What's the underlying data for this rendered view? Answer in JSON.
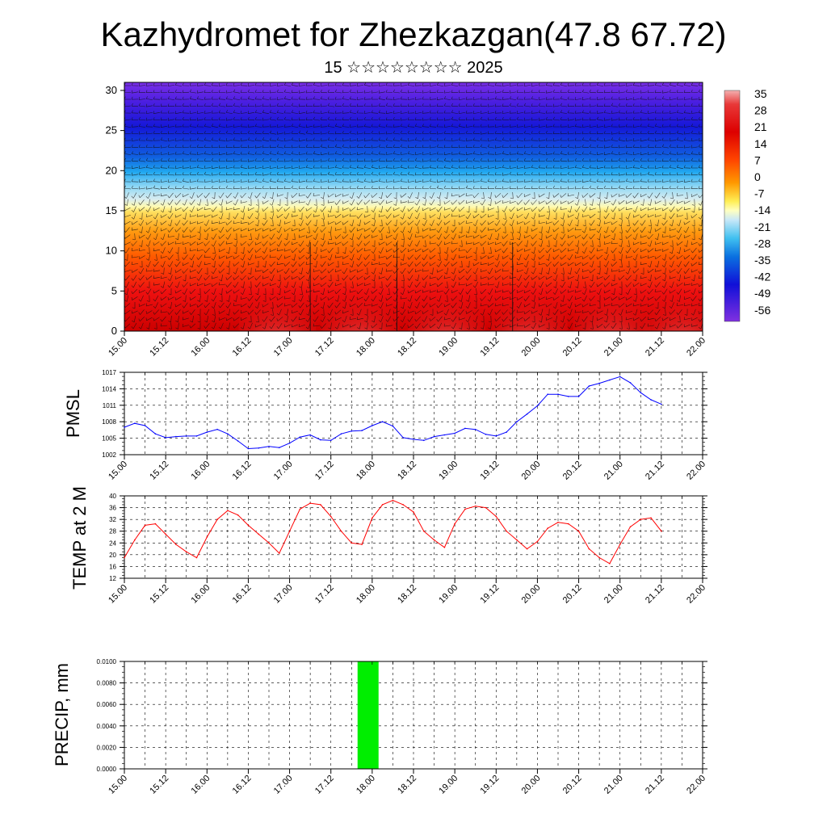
{
  "title": "Kazhydromet for Zhezkazgan(47.8 67.72)",
  "subtitle": "15 ☆☆☆☆☆☆☆☆ 2025",
  "time_labels": [
    "15.00",
    "15.12",
    "16.00",
    "16.12",
    "17.00",
    "17.12",
    "18.00",
    "18.12",
    "19.00",
    "19.12",
    "20.00",
    "20.12",
    "21.00",
    "21.12",
    "22.00"
  ],
  "colors": {
    "pmsl_line": "#0000ff",
    "temp_line": "#ff0000",
    "precip_bar": "#00ee00"
  },
  "chart_data": [
    {
      "type": "heatmap",
      "name": "vertical-temperature-wind-section",
      "yticks": [
        0,
        5,
        10,
        15,
        20,
        25,
        30
      ],
      "ylim": [
        0,
        31
      ],
      "colorbar": {
        "labels": [
          "35",
          "28",
          "21",
          "14",
          "7",
          "0",
          "-7",
          "-14",
          "-21",
          "-28",
          "-35",
          "-42",
          "-49",
          "-56"
        ],
        "range": [
          -60,
          38
        ]
      },
      "overlay": "wind barbs"
    },
    {
      "type": "line",
      "ylabel": "PMSL",
      "yticks": [
        "1002",
        "1005",
        "1008",
        "1011",
        "1014",
        "1017"
      ],
      "ylim": [
        1002,
        1017
      ],
      "x": [
        0,
        0.125,
        0.25,
        0.375,
        0.5,
        0.625,
        0.75,
        0.875,
        1,
        1.125,
        1.25,
        1.375,
        1.5,
        1.625,
        1.75,
        1.875,
        2,
        2.125,
        2.25,
        2.375,
        2.5,
        2.625,
        2.75,
        2.875,
        3,
        3.125,
        3.25,
        3.375,
        3.5,
        3.625,
        3.75,
        3.875,
        4,
        4.125,
        4.25,
        4.375,
        4.5,
        4.625,
        4.75,
        4.875,
        5,
        5.125,
        5.25,
        5.375,
        5.5,
        5.625,
        5.75,
        5.875,
        6,
        6.125,
        6.25,
        6.375,
        6.5
      ],
      "values": [
        1007.0,
        1007.7,
        1007.3,
        1005.8,
        1005.1,
        1005.3,
        1005.4,
        1005.4,
        1006.1,
        1006.6,
        1005.8,
        1004.5,
        1003.1,
        1003.2,
        1003.5,
        1003.3,
        1004.1,
        1005.2,
        1005.6,
        1004.7,
        1004.6,
        1005.8,
        1006.3,
        1006.4,
        1007.3,
        1008.0,
        1007.2,
        1005.1,
        1004.8,
        1004.6,
        1005.3,
        1005.6,
        1005.9,
        1006.8,
        1006.6,
        1005.7,
        1005.4,
        1006.1,
        1008.0,
        1009.4,
        1010.9,
        1013.0,
        1013.0,
        1012.6,
        1012.6,
        1014.5,
        1015.0,
        1015.6,
        1016.2,
        1015.1,
        1013.3,
        1012.0,
        1011.2
      ]
    },
    {
      "type": "line",
      "ylabel": "TEMP at 2 M",
      "yticks": [
        "12",
        "16",
        "20",
        "24",
        "28",
        "32",
        "36",
        "40"
      ],
      "ylim": [
        12,
        40
      ],
      "x": [
        0,
        0.125,
        0.25,
        0.375,
        0.5,
        0.625,
        0.75,
        0.875,
        1,
        1.125,
        1.25,
        1.375,
        1.5,
        1.625,
        1.75,
        1.875,
        2,
        2.125,
        2.25,
        2.375,
        2.5,
        2.625,
        2.75,
        2.875,
        3,
        3.125,
        3.25,
        3.375,
        3.5,
        3.625,
        3.75,
        3.875,
        4,
        4.125,
        4.25,
        4.375,
        4.5,
        4.625,
        4.75,
        4.875,
        5,
        5.125,
        5.25,
        5.375,
        5.5,
        5.625,
        5.75,
        5.875,
        6,
        6.125,
        6.25,
        6.375,
        6.5
      ],
      "values": [
        19,
        25,
        30,
        30.5,
        27,
        23.5,
        21,
        19,
        26,
        32,
        35,
        33.5,
        30,
        27,
        24,
        20.5,
        28,
        35.5,
        37.5,
        37,
        33,
        28,
        24,
        23.5,
        32.5,
        37,
        38.5,
        37,
        34.5,
        28,
        25,
        22.5,
        30.5,
        35.5,
        36.5,
        36,
        33,
        28,
        25,
        22,
        24.5,
        29,
        31,
        30.5,
        28,
        22,
        19,
        17,
        23.5,
        29.5,
        32,
        32.5,
        28
      ]
    },
    {
      "type": "bar",
      "ylabel": "PRECIP, mm",
      "yticks": [
        "0.0000",
        "0.0020",
        "0.0040",
        "0.0060",
        "0.0080",
        "0.0100"
      ],
      "ylim": [
        0,
        0.01
      ],
      "x": [
        2.95
      ],
      "values": [
        0.01
      ]
    }
  ]
}
